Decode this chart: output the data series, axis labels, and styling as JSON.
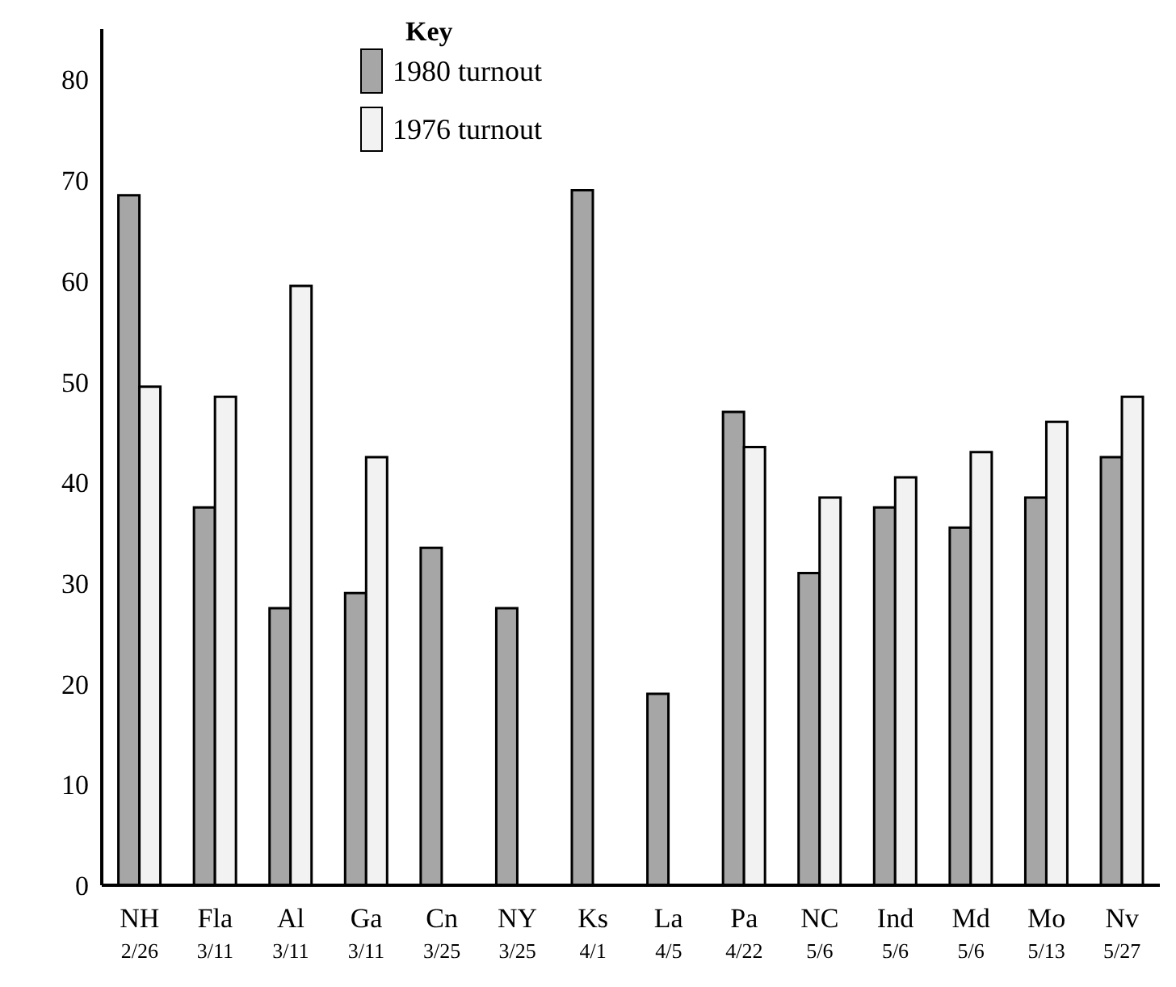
{
  "chart_data": {
    "type": "bar",
    "legend_title": "Key",
    "legend": "top",
    "grid": false,
    "categories": [
      "NH\n2/26",
      "Fla\n3/11",
      "Al\n3/11",
      "Ga\n3/11",
      "Cn\n3/25",
      "NY\n3/25",
      "Ks\n4/1",
      "La\n4/5",
      "Pa\n4/22",
      "NC\n5/6",
      "Ind\n5/6",
      "Md\n5/6",
      "Mo\n5/13",
      "Nv\n5/27"
    ],
    "series": [
      {
        "name": "1980 turnout",
        "color": "#a6a6a6",
        "values": [
          68.5,
          37.5,
          27.5,
          29,
          33.5,
          27.5,
          69,
          19,
          47,
          31,
          37.5,
          35.5,
          38.5,
          42.5
        ]
      },
      {
        "name": "1976 turnout",
        "color": "#f2f2f2",
        "values": [
          49.5,
          48.5,
          59.5,
          42.5,
          null,
          null,
          null,
          null,
          43.5,
          38.5,
          40.5,
          43,
          46,
          48.5
        ]
      }
    ],
    "ylim": [
      0,
      85
    ],
    "yticks": [
      0,
      10,
      20,
      30,
      40,
      50,
      60,
      70,
      80
    ]
  }
}
